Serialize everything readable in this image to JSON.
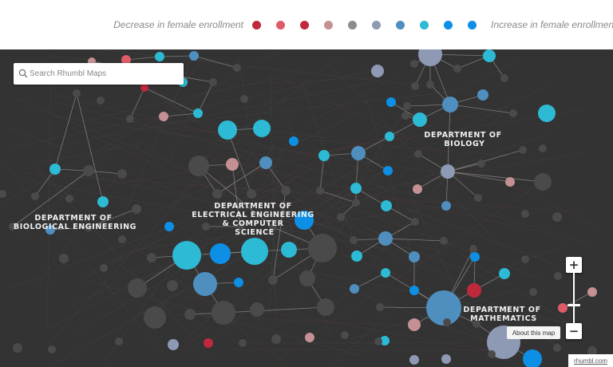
{
  "legend": {
    "decrease_label": "Decrease in female enrollment",
    "increase_label": "Increase in female enrollment",
    "colors": [
      "#c0293c",
      "#de5b67",
      "#c0293c",
      "#c49093",
      "#8c8c8c",
      "#8e9ab4",
      "#4f8fbf",
      "#2dbad5",
      "#0d8fe6",
      "#0d8fe6"
    ]
  },
  "search": {
    "placeholder": "Search Rhumbl Maps",
    "icon": "search-icon"
  },
  "departments": [
    {
      "id": "bio",
      "lines": [
        "DEPARTMENT OF",
        "BIOLOGY"
      ]
    },
    {
      "id": "bioeng",
      "lines": [
        "DEPARTMENT OF",
        "BIOLOGICAL ENGINEERING"
      ]
    },
    {
      "id": "eecs",
      "lines": [
        "DEPARTMENT OF",
        "ELECTRICAL ENGINEERING",
        "& COMPUTER",
        "SCIENCE"
      ]
    },
    {
      "id": "math",
      "lines": [
        "DEPARTMENT OF",
        "MATHEMATICS"
      ]
    }
  ],
  "zoom": {
    "in_label": "+",
    "out_label": "−"
  },
  "about_label": "About this map",
  "attribution": "rhumbl.com",
  "node_colors": {
    "red": "#c0293c",
    "pink": "#de5b67",
    "rose": "#c49093",
    "gray": "#8c8c8c",
    "lavender": "#8e9ab4",
    "steel": "#4f8fbf",
    "cyan": "#2dbad5",
    "blue": "#0d8fe6",
    "dark": "#4a4a4a"
  }
}
